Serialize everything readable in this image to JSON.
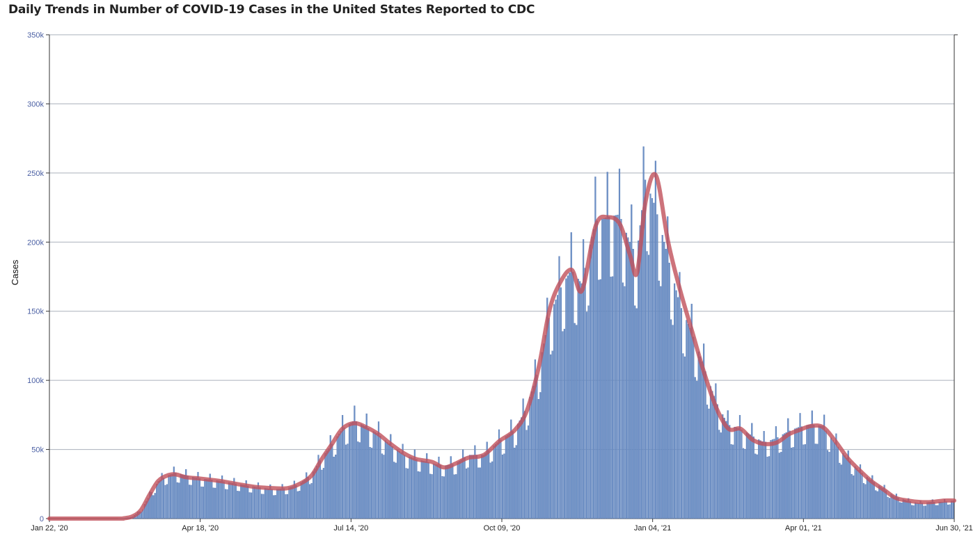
{
  "title": "Daily Trends in Number of COVID-19 Cases in the United States Reported to CDC",
  "chart_data": {
    "type": "bar",
    "title": "Daily Trends in Number of COVID-19 Cases in the United States Reported to CDC",
    "xlabel": "",
    "ylabel": "Cases",
    "ylim": [
      0,
      350000
    ],
    "yticks": [
      0,
      50000,
      100000,
      150000,
      200000,
      250000,
      300000,
      350000
    ],
    "ytick_labels": [
      "0",
      "50k",
      "100k",
      "150k",
      "200k",
      "250k",
      "300k",
      "350k"
    ],
    "xticks": [
      "Jan 22, '20",
      "Apr 18, '20",
      "Jul 14, '20",
      "Oct 09, '20",
      "Jan 04, '21",
      "Apr 01, '21",
      "Jun 30, '21"
    ],
    "x_start": "2020-01-22",
    "x_end": "2021-06-30",
    "grid": true,
    "bar_color": "#6f92c6",
    "bar_edge_color": "#4a6fb0",
    "avg_color": "#c0505a",
    "series": [
      {
        "type": "bar",
        "x": [
          "2020-01-22",
          "2020-03-01",
          "2020-03-05",
          "2020-03-10",
          "2020-03-15",
          "2020-03-20",
          "2020-03-25",
          "2020-03-30",
          "2020-04-04",
          "2020-04-10",
          "2020-04-18",
          "2020-04-25",
          "2020-05-01",
          "2020-05-10",
          "2020-05-20",
          "2020-05-31",
          "2020-06-08",
          "2020-06-15",
          "2020-06-22",
          "2020-06-28",
          "2020-07-04",
          "2020-07-10",
          "2020-07-17",
          "2020-07-24",
          "2020-07-31",
          "2020-08-07",
          "2020-08-15",
          "2020-08-22",
          "2020-08-31",
          "2020-09-07",
          "2020-09-14",
          "2020-09-21",
          "2020-09-30",
          "2020-10-09",
          "2020-10-18",
          "2020-10-25",
          "2020-11-01",
          "2020-11-07",
          "2020-11-13",
          "2020-11-20",
          "2020-11-26",
          "2020-12-04",
          "2020-12-11",
          "2020-12-18",
          "2020-12-24",
          "2020-12-28",
          "2021-01-02",
          "2021-01-08",
          "2021-01-15",
          "2021-01-22",
          "2021-01-29",
          "2021-02-05",
          "2021-02-12",
          "2021-02-19",
          "2021-02-26",
          "2021-03-05",
          "2021-03-12",
          "2021-03-19",
          "2021-03-26",
          "2021-04-01",
          "2021-04-08",
          "2021-04-15",
          "2021-04-22",
          "2021-04-29",
          "2021-05-06",
          "2021-05-13",
          "2021-05-20",
          "2021-05-27",
          "2021-06-03",
          "2021-06-10",
          "2021-06-17",
          "2021-06-24",
          "2021-06-30"
        ],
        "y": [
          0,
          0,
          200,
          1500,
          6000,
          17000,
          27000,
          31000,
          33000,
          31000,
          29000,
          28000,
          27000,
          25000,
          23000,
          21000,
          22000,
          25000,
          32000,
          44000,
          54000,
          65000,
          71000,
          66000,
          61000,
          53000,
          46000,
          43000,
          40000,
          38000,
          40000,
          46000,
          46000,
          56000,
          64000,
          80000,
          108000,
          145000,
          165000,
          180000,
          170000,
          215000,
          218000,
          220000,
          200000,
          190000,
          245000,
          225000,
          190000,
          155000,
          135000,
          110000,
          85000,
          68000,
          65000,
          60000,
          55000,
          58000,
          63000,
          66000,
          68000,
          67000,
          55000,
          44000,
          35000,
          28000,
          22000,
          16000,
          13000,
          11000,
          12000,
          12000,
          13000
        ]
      },
      {
        "type": "line",
        "name": "",
        "x": [
          "2020-01-22",
          "2020-03-01",
          "2020-03-05",
          "2020-03-10",
          "2020-03-15",
          "2020-03-20",
          "2020-03-25",
          "2020-03-30",
          "2020-04-04",
          "2020-04-10",
          "2020-04-18",
          "2020-04-25",
          "2020-05-01",
          "2020-05-10",
          "2020-05-20",
          "2020-05-31",
          "2020-06-08",
          "2020-06-15",
          "2020-06-22",
          "2020-06-28",
          "2020-07-04",
          "2020-07-10",
          "2020-07-17",
          "2020-07-24",
          "2020-07-31",
          "2020-08-07",
          "2020-08-15",
          "2020-08-22",
          "2020-08-31",
          "2020-09-07",
          "2020-09-14",
          "2020-09-21",
          "2020-09-30",
          "2020-10-09",
          "2020-10-18",
          "2020-10-25",
          "2020-11-01",
          "2020-11-07",
          "2020-11-13",
          "2020-11-20",
          "2020-11-26",
          "2020-12-04",
          "2020-12-11",
          "2020-12-18",
          "2020-12-24",
          "2020-12-28",
          "2021-01-02",
          "2021-01-08",
          "2021-01-15",
          "2021-01-22",
          "2021-01-29",
          "2021-02-05",
          "2021-02-12",
          "2021-02-19",
          "2021-02-26",
          "2021-03-05",
          "2021-03-12",
          "2021-03-19",
          "2021-03-26",
          "2021-04-01",
          "2021-04-08",
          "2021-04-15",
          "2021-04-22",
          "2021-04-29",
          "2021-05-06",
          "2021-05-13",
          "2021-05-20",
          "2021-05-27",
          "2021-06-03",
          "2021-06-10",
          "2021-06-17",
          "2021-06-24",
          "2021-06-30"
        ],
        "y": [
          0,
          0,
          200,
          1500,
          6000,
          17000,
          27000,
          31000,
          32000,
          30000,
          29000,
          28000,
          27000,
          25000,
          23000,
          22000,
          22000,
          25000,
          31000,
          43000,
          54000,
          65000,
          69000,
          66000,
          61000,
          54000,
          47000,
          43000,
          41000,
          37000,
          40000,
          44000,
          46000,
          56000,
          64000,
          78000,
          110000,
          150000,
          170000,
          180000,
          165000,
          212000,
          218000,
          213000,
          190000,
          178000,
          230000,
          248000,
          200000,
          165000,
          135000,
          105000,
          80000,
          65000,
          65000,
          57000,
          54000,
          55000,
          61000,
          64000,
          67000,
          66000,
          56000,
          44000,
          35000,
          27000,
          21000,
          15000,
          13000,
          12000,
          12000,
          13000,
          13000
        ]
      }
    ]
  }
}
